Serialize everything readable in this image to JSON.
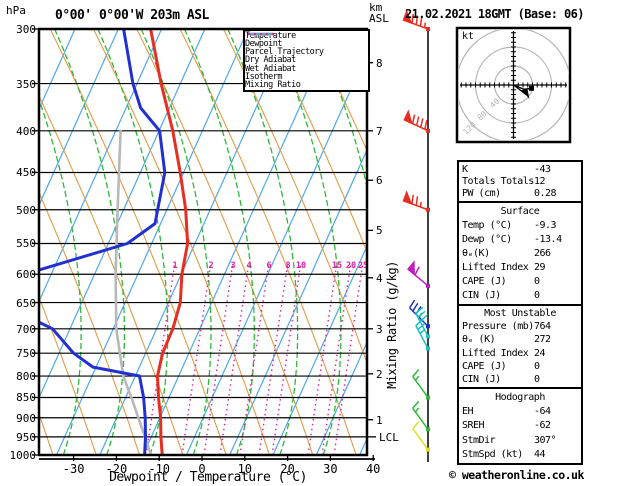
{
  "header": {
    "pressure_unit": "hPa",
    "title": "0°00' 0°00'W 203m ASL",
    "altitude_unit": "km\nASL",
    "datetime": "21.02.2021 18GMT (Base: 06)"
  },
  "legend": {
    "items": [
      {
        "label": "Temperature",
        "color": "#e62e21",
        "weight": 3,
        "dash": ""
      },
      {
        "label": "Dewpoint",
        "color": "#2230d0",
        "weight": 3,
        "dash": ""
      },
      {
        "label": "Parcel Trajectory",
        "color": "#b8b8b8",
        "weight": 3,
        "dash": ""
      },
      {
        "label": "Dry Adiabat",
        "color": "#e09b4a",
        "weight": 1.5,
        "dash": ""
      },
      {
        "label": "Wet Adiabat",
        "color": "#2eb838",
        "weight": 1.5,
        "dash": ""
      },
      {
        "label": "Isotherm",
        "color": "#4fa8e8",
        "weight": 1.5,
        "dash": ""
      },
      {
        "label": "Mixing Ratio",
        "color": "#e0219f",
        "weight": 2,
        "dash": "2,4"
      }
    ]
  },
  "axes": {
    "pressure_ticks": [
      300,
      350,
      400,
      450,
      500,
      550,
      600,
      650,
      700,
      750,
      800,
      850,
      900,
      950,
      1000
    ],
    "temp_ticks": [
      -30,
      -20,
      -10,
      0,
      10,
      20,
      30,
      40
    ],
    "xaxis_title": "Dewpoint / Temperature (°C)",
    "right_axis_title": "Mixing Ratio (g/kg)",
    "km_levels": [
      {
        "km": "8",
        "p": 330
      },
      {
        "km": "7",
        "p": 400
      },
      {
        "km": "6",
        "p": 460
      },
      {
        "km": "5",
        "p": 530
      },
      {
        "km": "4",
        "p": 606
      },
      {
        "km": "3",
        "p": 700
      },
      {
        "km": "2",
        "p": 795
      },
      {
        "km": "1",
        "p": 905
      }
    ],
    "lcl": {
      "label": "LCL",
      "p": 950
    }
  },
  "hodograph": {
    "unit_label": "kt",
    "ring_labels": [
      "40",
      "80",
      "120"
    ],
    "ring_values_kt": [
      40,
      80,
      120
    ],
    "trace_kt": [
      [
        0,
        0
      ],
      [
        22,
        9
      ],
      [
        38,
        7
      ]
    ],
    "storm_motion": {
      "dir_deg": 307,
      "speed_kt": 44
    }
  },
  "panel": {
    "sections": [
      {
        "header": "",
        "rows": [
          [
            "K",
            "-43"
          ],
          [
            "Totals Totals",
            "12"
          ],
          [
            "PW (cm)",
            "0.28"
          ]
        ]
      },
      {
        "header": "Surface",
        "rows": [
          [
            "Temp (°C)",
            "-9.3"
          ],
          [
            "Dewp (°C)",
            "-13.4"
          ],
          [
            "θₑ(K)",
            "266"
          ],
          [
            "Lifted Index",
            "29"
          ],
          [
            "CAPE (J)",
            "0"
          ],
          [
            "CIN (J)",
            "0"
          ]
        ]
      },
      {
        "header": "Most Unstable",
        "rows": [
          [
            "Pressure (mb)",
            "764"
          ],
          [
            "θₑ (K)",
            "272"
          ],
          [
            "Lifted Index",
            "24"
          ],
          [
            "CAPE (J)",
            "0"
          ],
          [
            "CIN (J)",
            "0"
          ]
        ]
      },
      {
        "header": "Hodograph",
        "rows": [
          [
            "EH",
            "-64"
          ],
          [
            "SREH",
            "-62"
          ],
          [
            "StmDir",
            "307°"
          ],
          [
            "StmSpd (kt)",
            "44"
          ]
        ]
      }
    ]
  },
  "footer": {
    "credit": "© weatheronline.co.uk"
  },
  "chart_data": {
    "type": "skew-t-log-p-sounding",
    "title": "0°00' 0°00'W 203m ASL",
    "datetime": "21.02.2021 18GMT (Base: 06)",
    "pressure_range_hpa": [
      300,
      1000
    ],
    "temp_axis_range_c": [
      -40,
      45
    ],
    "temperature_profile_p_t": [
      [
        300,
        -56.8
      ],
      [
        350,
        -48.6
      ],
      [
        400,
        -40.9
      ],
      [
        450,
        -34.8
      ],
      [
        500,
        -29.6
      ],
      [
        550,
        -25.6
      ],
      [
        600,
        -23.7
      ],
      [
        650,
        -21.1
      ],
      [
        700,
        -20.1
      ],
      [
        750,
        -19.9
      ],
      [
        800,
        -18.7
      ],
      [
        850,
        -16.2
      ],
      [
        900,
        -13.6
      ],
      [
        950,
        -11.5
      ],
      [
        1000,
        -9.3
      ]
    ],
    "dewpoint_profile_p_t": [
      [
        300,
        -63.1
      ],
      [
        350,
        -55.2
      ],
      [
        375,
        -50.8
      ],
      [
        400,
        -44.0
      ],
      [
        450,
        -38.4
      ],
      [
        520,
        -35.3
      ],
      [
        550,
        -39.7
      ],
      [
        600,
        -60.4
      ],
      [
        620,
        -71.7
      ],
      [
        650,
        -63.5
      ],
      [
        700,
        -48.2
      ],
      [
        750,
        -40.7
      ],
      [
        780,
        -34.7
      ],
      [
        800,
        -22.9
      ],
      [
        850,
        -19.7
      ],
      [
        900,
        -17.2
      ],
      [
        950,
        -15.1
      ],
      [
        1000,
        -13.4
      ]
    ],
    "parcel_profile_p_t": [
      [
        400,
        -53.1
      ],
      [
        500,
        -45.5
      ],
      [
        600,
        -39.2
      ],
      [
        700,
        -33.3
      ],
      [
        800,
        -26.7
      ],
      [
        857,
        -22.0
      ],
      [
        1000,
        -11.9
      ]
    ],
    "mixing_ratio_lines_g_kg": [
      "1",
      "2",
      "3",
      "4",
      "6",
      "8",
      "10",
      "15",
      "20",
      "25"
    ],
    "wind_barbs": [
      {
        "p": 300,
        "speed_kt": 85,
        "dir_deg": 290,
        "color": "#e62e21"
      },
      {
        "p": 400,
        "speed_kt": 90,
        "dir_deg": 295,
        "color": "#e62e21"
      },
      {
        "p": 500,
        "speed_kt": 75,
        "dir_deg": 290,
        "color": "#e62e21"
      },
      {
        "p": 620,
        "speed_kt": 60,
        "dir_deg": 310,
        "color": "#bf1fbf"
      },
      {
        "p": 695,
        "speed_kt": 35,
        "dir_deg": 315,
        "color": "#2230d0"
      },
      {
        "p": 715,
        "speed_kt": 30,
        "dir_deg": 332,
        "color": "#17c3c3"
      },
      {
        "p": 740,
        "speed_kt": 25,
        "dir_deg": 332,
        "color": "#17c3c3"
      },
      {
        "p": 850,
        "speed_kt": 15,
        "dir_deg": 324,
        "color": "#2eb838"
      },
      {
        "p": 930,
        "speed_kt": 15,
        "dir_deg": 324,
        "color": "#2eb838"
      },
      {
        "p": 985,
        "speed_kt": 10,
        "dir_deg": 324,
        "color": "#e0dd25"
      }
    ],
    "indices": {
      "K": -43,
      "totals_totals": 12,
      "pw_cm": 0.28,
      "surface": {
        "temp_c": -9.3,
        "dewp_c": -13.4,
        "theta_e_k": 266,
        "lifted_index": 29,
        "cape_j": 0,
        "cin_j": 0
      },
      "most_unstable": {
        "pressure_mb": 764,
        "theta_e_k": 272,
        "lifted_index": 24,
        "cape_j": 0,
        "cin_j": 0
      },
      "hodograph": {
        "EH": -64,
        "SREH": -62,
        "storm_dir_deg": 307,
        "storm_speed_kt": 44
      }
    }
  }
}
